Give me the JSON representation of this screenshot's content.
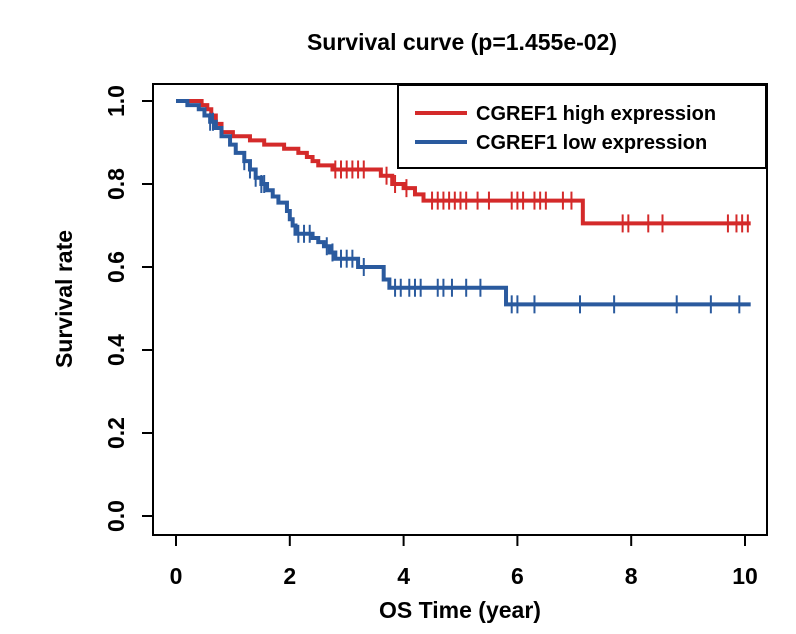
{
  "chart_data": {
    "type": "line",
    "title": "Survival curve (p=1.455e-02)",
    "xlabel": "OS Time (year)",
    "ylabel": "Survival rate",
    "xlim": [
      0,
      10
    ],
    "ylim": [
      0,
      1
    ],
    "x_ticks": [
      0,
      2,
      4,
      6,
      8,
      10
    ],
    "y_ticks": [
      0.0,
      0.2,
      0.4,
      0.6,
      0.8,
      1.0
    ],
    "x_tick_labels": [
      "0",
      "2",
      "4",
      "6",
      "8",
      "10"
    ],
    "y_tick_labels": [
      "0.0",
      "0.2",
      "0.4",
      "0.6",
      "0.8",
      "1.0"
    ],
    "legend_position": "top-right",
    "series": [
      {
        "name": "CGREF1 high expression",
        "color": "#d42a2a",
        "steps": [
          [
            0,
            1.0
          ],
          [
            0.45,
            0.99
          ],
          [
            0.55,
            0.98
          ],
          [
            0.62,
            0.965
          ],
          [
            0.7,
            0.945
          ],
          [
            0.8,
            0.925
          ],
          [
            1.0,
            0.915
          ],
          [
            1.3,
            0.905
          ],
          [
            1.55,
            0.895
          ],
          [
            1.9,
            0.885
          ],
          [
            2.15,
            0.875
          ],
          [
            2.3,
            0.865
          ],
          [
            2.4,
            0.855
          ],
          [
            2.5,
            0.845
          ],
          [
            2.75,
            0.835
          ],
          [
            3.6,
            0.82
          ],
          [
            3.8,
            0.8
          ],
          [
            4.0,
            0.79
          ],
          [
            4.2,
            0.775
          ],
          [
            4.35,
            0.76
          ],
          [
            7.15,
            0.705
          ],
          [
            10.1,
            0.705
          ]
        ],
        "censor_x": [
          2.8,
          2.9,
          3.0,
          3.1,
          3.2,
          3.3,
          3.7,
          3.85,
          4.05,
          4.5,
          4.6,
          4.7,
          4.8,
          4.9,
          5.0,
          5.1,
          5.3,
          5.5,
          5.9,
          6.0,
          6.1,
          6.3,
          6.4,
          6.5,
          6.8,
          6.95,
          7.85,
          7.95,
          8.3,
          8.55,
          9.7,
          9.85,
          9.95,
          10.05
        ]
      },
      {
        "name": "CGREF1 low expression",
        "color": "#2a5a9e",
        "steps": [
          [
            0,
            1.0
          ],
          [
            0.2,
            0.99
          ],
          [
            0.4,
            0.98
          ],
          [
            0.5,
            0.965
          ],
          [
            0.6,
            0.95
          ],
          [
            0.7,
            0.935
          ],
          [
            0.8,
            0.915
          ],
          [
            0.95,
            0.895
          ],
          [
            1.05,
            0.875
          ],
          [
            1.2,
            0.855
          ],
          [
            1.3,
            0.835
          ],
          [
            1.4,
            0.815
          ],
          [
            1.5,
            0.8
          ],
          [
            1.6,
            0.785
          ],
          [
            1.7,
            0.77
          ],
          [
            1.8,
            0.755
          ],
          [
            1.95,
            0.735
          ],
          [
            2.0,
            0.715
          ],
          [
            2.05,
            0.7
          ],
          [
            2.1,
            0.68
          ],
          [
            2.4,
            0.67
          ],
          [
            2.5,
            0.66
          ],
          [
            2.6,
            0.65
          ],
          [
            2.7,
            0.635
          ],
          [
            2.8,
            0.62
          ],
          [
            3.2,
            0.6
          ],
          [
            3.65,
            0.57
          ],
          [
            3.75,
            0.55
          ],
          [
            5.8,
            0.51
          ],
          [
            10.1,
            0.51
          ]
        ],
        "censor_x": [
          0.6,
          0.65,
          1.2,
          1.3,
          1.4,
          1.5,
          1.55,
          2.15,
          2.25,
          2.35,
          2.65,
          2.75,
          2.9,
          3.0,
          3.1,
          3.3,
          3.85,
          3.95,
          4.1,
          4.2,
          4.3,
          4.6,
          4.7,
          4.85,
          5.1,
          5.35,
          5.9,
          6.0,
          6.3,
          7.1,
          7.7,
          8.8,
          9.4,
          9.9
        ]
      }
    ]
  }
}
